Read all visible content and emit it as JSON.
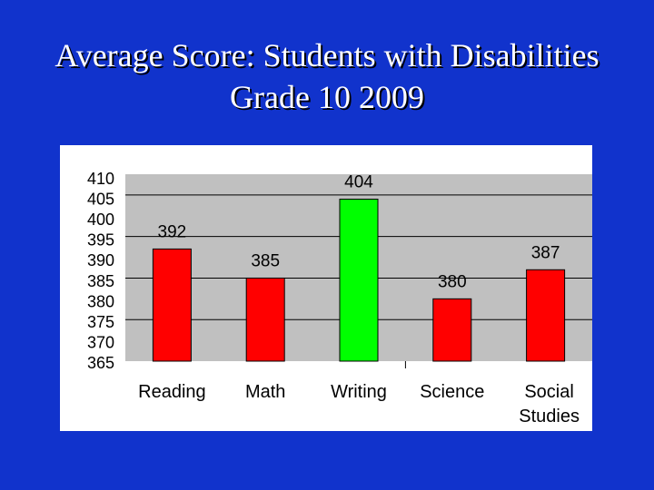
{
  "slide": {
    "title_line1": "Average Score: Students with Disabilities",
    "title_line2": "Grade 10 2009"
  },
  "colors": {
    "background": "#1133cc",
    "plot_area": "#c0c0c0",
    "bar_default": "#ff0000",
    "bar_highlight": "#00ff00"
  },
  "chart_data": {
    "type": "bar",
    "title": "Average Score: Students with Disabilities Grade 10 2009",
    "categories": [
      "Reading",
      "Math",
      "Writing",
      "Science",
      "Social Studies"
    ],
    "values": [
      392,
      385,
      404,
      380,
      387
    ],
    "highlight_category": "Writing",
    "xlabel": "",
    "ylabel": "",
    "ylim": [
      365,
      410
    ],
    "yticks": [
      410,
      405,
      400,
      395,
      390,
      385,
      380,
      375,
      370,
      365
    ],
    "grid": true,
    "data_labels": true,
    "legend": "none"
  }
}
